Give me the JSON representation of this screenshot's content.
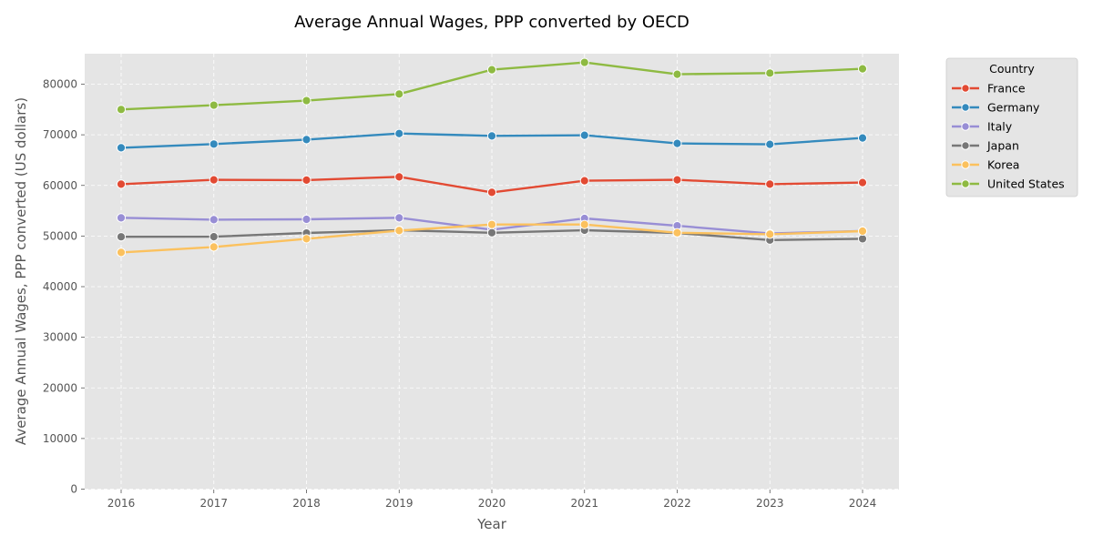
{
  "chart_data": {
    "type": "line",
    "title": "Average Annual Wages, PPP converted by OECD",
    "xlabel": "Year",
    "ylabel": "Average Annual Wages, PPP converted (US dollars)",
    "x": [
      2016,
      2017,
      2018,
      2019,
      2020,
      2021,
      2022,
      2023,
      2024
    ],
    "x_tick_labels": [
      "2016",
      "2017",
      "2018",
      "2019",
      "2020",
      "2021",
      "2022",
      "2023",
      "2024"
    ],
    "y_ticks": [
      0,
      10000,
      20000,
      30000,
      40000,
      50000,
      60000,
      70000,
      80000
    ],
    "y_tick_labels": [
      "0",
      "10000",
      "20000",
      "30000",
      "40000",
      "50000",
      "60000",
      "70000",
      "80000"
    ],
    "ylim": [
      0,
      86000
    ],
    "xlim": [
      2015.6,
      2024.4
    ],
    "grid": true,
    "legend": {
      "title": "Country",
      "placement": "outside-top-right"
    },
    "series": [
      {
        "name": "France",
        "color": "#E24A33",
        "values": [
          60250,
          61100,
          61050,
          61690,
          58630,
          60920,
          61100,
          60250,
          60560
        ]
      },
      {
        "name": "Germany",
        "color": "#348ABD",
        "values": [
          67440,
          68170,
          69060,
          70250,
          69780,
          69910,
          68290,
          68110,
          69370
        ]
      },
      {
        "name": "Italy",
        "color": "#988ED5",
        "values": [
          53600,
          53240,
          53300,
          53600,
          51250,
          53480,
          52030,
          50500,
          51000
        ]
      },
      {
        "name": "Japan",
        "color": "#777777",
        "values": [
          49850,
          49870,
          50600,
          51150,
          50650,
          51150,
          50600,
          49200,
          49450
        ]
      },
      {
        "name": "Korea",
        "color": "#FBC15E",
        "values": [
          46760,
          47840,
          49460,
          51080,
          52280,
          52280,
          50650,
          50360,
          50960
        ]
      },
      {
        "name": "United States",
        "color": "#8EBA42",
        "values": [
          75000,
          75850,
          76750,
          78060,
          82860,
          84300,
          81960,
          82190,
          83040
        ]
      }
    ]
  }
}
